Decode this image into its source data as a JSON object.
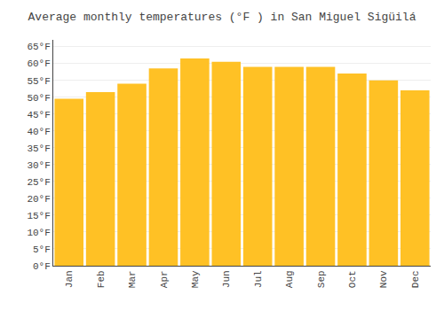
{
  "chart_data": {
    "type": "bar",
    "title": "Average monthly temperatures (°F ) in San Miguel Sigüilá",
    "categories": [
      "Jan",
      "Feb",
      "Mar",
      "Apr",
      "May",
      "Jun",
      "Jul",
      "Aug",
      "Sep",
      "Oct",
      "Nov",
      "Dec"
    ],
    "values": [
      49.5,
      51.5,
      54.0,
      58.5,
      61.5,
      60.5,
      59.0,
      59.0,
      59.0,
      57.0,
      55.0,
      52.0
    ],
    "color": "#FFC125",
    "ylim": [
      0,
      67
    ],
    "yticks": [
      {
        "value": 0,
        "label": "0°F"
      },
      {
        "value": 5,
        "label": "5°F"
      },
      {
        "value": 10,
        "label": "10°F"
      },
      {
        "value": 15,
        "label": "15°F"
      },
      {
        "value": 20,
        "label": "20°F"
      },
      {
        "value": 25,
        "label": "25°F"
      },
      {
        "value": 30,
        "label": "30°F"
      },
      {
        "value": 35,
        "label": "35°F"
      },
      {
        "value": 40,
        "label": "40°F"
      },
      {
        "value": 45,
        "label": "45°F"
      },
      {
        "value": 50,
        "label": "50°F"
      },
      {
        "value": 55,
        "label": "55°F"
      },
      {
        "value": 60,
        "label": "60°F"
      },
      {
        "value": 65,
        "label": "65°F"
      }
    ],
    "grid": true
  }
}
